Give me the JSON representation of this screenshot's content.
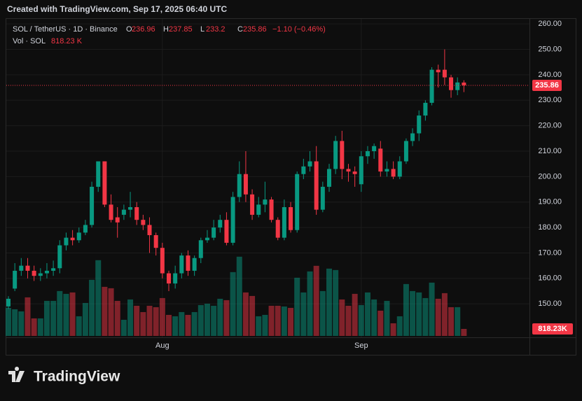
{
  "top_bar": "Created with TradingView.com, Sep 17, 2025 06:40 UTC",
  "footer_logo": "TradingView",
  "chart_data": {
    "type": "candlestick",
    "symbol": "SOL / TetherUS · 1D · Binance",
    "ohlc_letters": [
      "O",
      "H",
      "L",
      "C"
    ],
    "change_text": "−1.10 (−0.46%)",
    "volume_title": "Vol · SOL",
    "header_volume": "818.23 K",
    "up_color": "#089981",
    "down_color": "#f23645",
    "grid": true,
    "categories": [
      null,
      null,
      null,
      null,
      null,
      null,
      null,
      null,
      null,
      null,
      null,
      null,
      null,
      null,
      null,
      null,
      null,
      null,
      null,
      null,
      null,
      null,
      null,
      null,
      "Aug",
      null,
      null,
      null,
      null,
      null,
      null,
      null,
      null,
      null,
      null,
      null,
      null,
      null,
      null,
      null,
      null,
      null,
      null,
      null,
      null,
      null,
      null,
      null,
      null,
      null,
      null,
      null,
      null,
      null,
      null,
      "Sep",
      null,
      null,
      null,
      null,
      null,
      null,
      null,
      null,
      null,
      null,
      null,
      null,
      null,
      null,
      null,
      null
    ],
    "series": [
      {
        "name": "SOL / TetherUS",
        "open": [
          149,
          156,
          163,
          165,
          163,
          161,
          162,
          163,
          164,
          173,
          176,
          175,
          178,
          181,
          196,
          206,
          189,
          184,
          185,
          187,
          188,
          183,
          181,
          177,
          172,
          162,
          158,
          162,
          169,
          163,
          168,
          175,
          176,
          180,
          183,
          174,
          192,
          201,
          193,
          185,
          189,
          191,
          183,
          176,
          188,
          179,
          201,
          204,
          206,
          187,
          196,
          203,
          214,
          203,
          202,
          197,
          208,
          210,
          211,
          202,
          203,
          200,
          206,
          214,
          217,
          224,
          229,
          242,
          242,
          239,
          234,
          236.96
        ],
        "high": [
          153,
          166,
          168,
          168,
          165,
          164,
          166,
          167,
          175,
          178,
          179,
          180,
          183,
          198,
          206,
          206,
          193,
          188,
          189,
          194,
          190,
          185,
          184,
          178,
          174,
          163,
          165,
          170,
          171,
          169,
          176,
          179,
          183,
          185,
          186,
          194,
          206,
          210,
          195,
          192,
          198,
          192,
          184,
          191,
          190,
          202,
          207,
          210,
          212,
          198,
          205,
          216,
          218,
          205,
          204,
          210,
          212,
          213,
          214,
          206,
          206,
          208,
          215,
          219,
          226,
          230,
          243,
          244,
          250,
          240,
          239,
          237.85
        ],
        "low": [
          148,
          155,
          161,
          160,
          159,
          159,
          160,
          161,
          162,
          171,
          173,
          174,
          177,
          180,
          194,
          188,
          182,
          176,
          183,
          184,
          181,
          179,
          170,
          169,
          160,
          155,
          156,
          160,
          161,
          161,
          166,
          174,
          175,
          178,
          173,
          173,
          190,
          190,
          183,
          184,
          186,
          182,
          175,
          175,
          178,
          178,
          199,
          202,
          185,
          186,
          194,
          201,
          199,
          198,
          196,
          194,
          205,
          207,
          200,
          200,
          199,
          199,
          205,
          212,
          214,
          222,
          228,
          235,
          236,
          231,
          232,
          233.2
        ],
        "close": [
          152,
          163,
          165,
          163,
          161,
          162,
          163,
          164,
          173,
          176,
          175,
          178,
          181,
          196,
          206,
          189,
          183,
          182,
          187,
          188,
          183,
          181,
          177,
          172,
          162,
          158,
          162,
          169,
          163,
          168,
          175,
          176,
          180,
          183,
          174,
          192,
          201,
          193,
          185,
          189,
          191,
          183,
          176,
          188,
          179,
          201,
          204,
          206,
          187,
          196,
          203,
          214,
          203,
          202,
          201,
          208,
          210,
          212,
          202,
          203,
          200,
          206,
          214,
          217,
          224,
          229,
          242,
          241,
          239,
          234,
          237,
          235.86
        ]
      }
    ],
    "volume": {
      "name": "Vol · SOL",
      "axis": "y2",
      "values": [
        3280,
        3116,
        2870,
        4510,
        2050,
        2050,
        4100,
        4100,
        5248,
        4920,
        5084,
        2296,
        3854,
        6560,
        8856,
        5740,
        5576,
        4100,
        1886,
        4264,
        3526,
        2788,
        3526,
        3362,
        4428,
        2460,
        2296,
        2788,
        2460,
        2788,
        3608,
        3772,
        3526,
        4346,
        4182,
        7462,
        9266,
        5084,
        4674,
        2296,
        2460,
        3526,
        3526,
        3444,
        3280,
        6806,
        5084,
        7544,
        8200,
        5248,
        7872,
        7708,
        4264,
        3526,
        4920,
        3608,
        5084,
        4264,
        2952,
        4100,
        1476,
        2296,
        6068,
        5248,
        5084,
        4428,
        6232,
        4346,
        5002,
        3362,
        3362,
        818.23
      ],
      "value_labels": [
        null,
        null,
        null,
        null,
        null,
        null,
        null,
        null,
        null,
        null,
        null,
        null,
        null,
        null,
        null,
        null,
        null,
        null,
        null,
        null,
        null,
        null,
        null,
        null,
        null,
        null,
        null,
        null,
        null,
        null,
        null,
        null,
        null,
        null,
        null,
        null,
        null,
        null,
        null,
        null,
        null,
        null,
        null,
        null,
        null,
        null,
        null,
        null,
        null,
        null,
        null,
        null,
        null,
        null,
        null,
        null,
        null,
        null,
        null,
        null,
        null,
        null,
        null,
        null,
        null,
        null,
        null,
        null,
        null,
        null,
        null,
        "818.23K"
      ]
    },
    "ylim": [
      137.4,
      261.7
    ],
    "yticks": [
      {
        "value": 150,
        "label": "150.00"
      },
      {
        "value": 160,
        "label": "160.00"
      },
      {
        "value": 170,
        "label": "170.00"
      },
      {
        "value": 180,
        "label": "180.00"
      },
      {
        "value": 190,
        "label": "190.00"
      },
      {
        "value": 200,
        "label": "200.00"
      },
      {
        "value": 210,
        "label": "210.00"
      },
      {
        "value": 220,
        "label": "220.00"
      },
      {
        "value": 230,
        "label": "230.00"
      },
      {
        "value": 240,
        "label": "240.00"
      },
      {
        "value": 250,
        "label": "250.00"
      },
      {
        "value": 260,
        "label": "260.00"
      }
    ],
    "y2lim": [
      0,
      37000
    ]
  }
}
